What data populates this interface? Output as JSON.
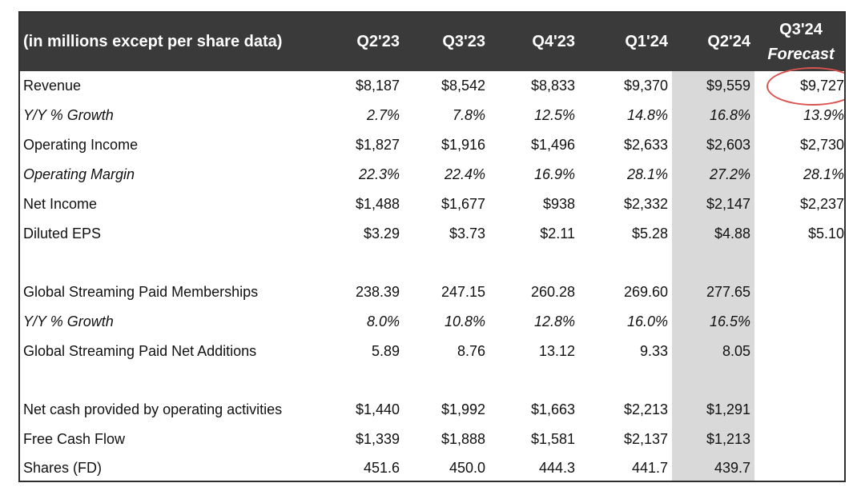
{
  "header": {
    "label": "(in millions except per share data)",
    "columns": [
      "Q2'23",
      "Q3'23",
      "Q4'23",
      "Q1'24",
      "Q2'24"
    ],
    "forecast_line1": "Q3'24",
    "forecast_line2": "Forecast"
  },
  "rows": [
    {
      "label": "Revenue",
      "italic": false,
      "values": [
        "$8,187",
        "$8,542",
        "$8,833",
        "$9,370",
        "$9,559",
        "$9,727"
      ]
    },
    {
      "label": "Y/Y % Growth",
      "italic": true,
      "values": [
        "2.7%",
        "7.8%",
        "12.5%",
        "14.8%",
        "16.8%",
        "13.9%"
      ]
    },
    {
      "label": "Operating Income",
      "italic": false,
      "values": [
        "$1,827",
        "$1,916",
        "$1,496",
        "$2,633",
        "$2,603",
        "$2,730"
      ]
    },
    {
      "label": "Operating Margin",
      "italic": true,
      "values": [
        "22.3%",
        "22.4%",
        "16.9%",
        "28.1%",
        "27.2%",
        "28.1%"
      ]
    },
    {
      "label": "Net Income",
      "italic": false,
      "values": [
        "$1,488",
        "$1,677",
        "$938",
        "$2,332",
        "$2,147",
        "$2,237"
      ]
    },
    {
      "label": "Diluted EPS",
      "italic": false,
      "values": [
        "$3.29",
        "$3.73",
        "$2.11",
        "$5.28",
        "$4.88",
        "$5.10"
      ]
    },
    {
      "label": "Global Streaming Paid Memberships",
      "italic": false,
      "values": [
        "238.39",
        "247.15",
        "260.28",
        "269.60",
        "277.65",
        ""
      ]
    },
    {
      "label": "Y/Y % Growth",
      "italic": true,
      "values": [
        "8.0%",
        "10.8%",
        "12.8%",
        "16.0%",
        "16.5%",
        ""
      ]
    },
    {
      "label": "Global Streaming Paid Net Additions",
      "italic": false,
      "values": [
        "5.89",
        "8.76",
        "13.12",
        "9.33",
        "8.05",
        ""
      ]
    },
    {
      "label": "Net cash provided by operating activities",
      "italic": false,
      "values": [
        "$1,440",
        "$1,992",
        "$1,663",
        "$2,213",
        "$1,291",
        ""
      ]
    },
    {
      "label": "Free Cash Flow",
      "italic": false,
      "values": [
        "$1,339",
        "$1,888",
        "$1,581",
        "$2,137",
        "$1,213",
        ""
      ]
    },
    {
      "label": "Shares (FD)",
      "italic": false,
      "values": [
        "451.6",
        "450.0",
        "444.3",
        "441.7",
        "439.7",
        ""
      ]
    }
  ],
  "colors": {
    "header_bg": "#3a3a3a",
    "highlight_column": "#d9d9d9",
    "annotation_circle": "#d9534f"
  }
}
